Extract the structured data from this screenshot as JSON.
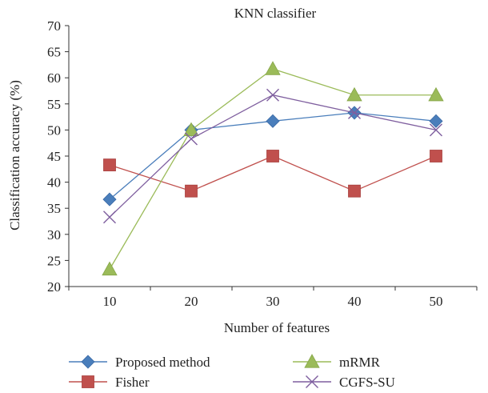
{
  "chart_data": {
    "type": "line",
    "title": "KNN classifier",
    "xlabel": "Number of features",
    "ylabel": "Classification accuracy (%)",
    "x": [
      10,
      20,
      30,
      40,
      50
    ],
    "xticks": [
      "10",
      "20",
      "30",
      "40",
      "50"
    ],
    "yticks": [
      "20",
      "25",
      "30",
      "35",
      "40",
      "45",
      "50",
      "55",
      "60",
      "65",
      "70"
    ],
    "ylim": [
      20,
      70
    ],
    "xlim": [
      5,
      55
    ],
    "grid": false,
    "legend_position": "bottom",
    "series": [
      {
        "name": "Proposed method",
        "values": [
          36.7,
          50.0,
          51.7,
          53.3,
          51.7
        ],
        "color": "#4a7ebb",
        "marker": "diamond"
      },
      {
        "name": "Fisher",
        "values": [
          43.3,
          38.3,
          45.0,
          38.3,
          45.0
        ],
        "color": "#c0504d",
        "marker": "square"
      },
      {
        "name": "mRMR",
        "values": [
          23.3,
          50.0,
          61.7,
          56.7,
          56.7
        ],
        "color": "#9bbb59",
        "marker": "triangle"
      },
      {
        "name": "CGFS-SU",
        "values": [
          33.3,
          48.3,
          56.7,
          53.3,
          50.0
        ],
        "color": "#7f5f9f",
        "marker": "x"
      }
    ]
  }
}
